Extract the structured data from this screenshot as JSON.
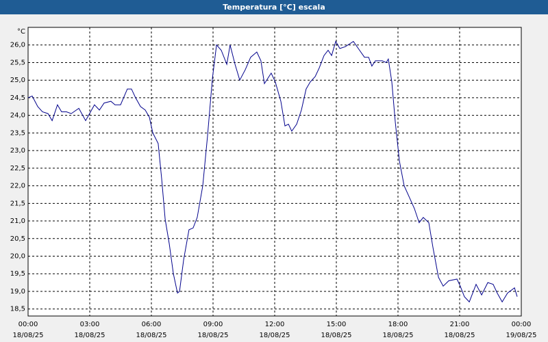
{
  "chart_data": {
    "type": "line",
    "title": "Temperatura [°C] escala",
    "unit": "°C",
    "x": [
      0,
      0.2,
      0.47,
      0.7,
      0.97,
      1.17,
      1.43,
      1.63,
      1.87,
      2.1,
      2.47,
      2.8,
      3.23,
      3.47,
      3.7,
      4.03,
      4.23,
      4.5,
      4.83,
      5.03,
      5.23,
      5.47,
      5.7,
      5.9,
      6.07,
      6.33,
      6.5,
      6.67,
      6.87,
      7.07,
      7.27,
      7.37,
      7.57,
      7.83,
      8.03,
      8.23,
      8.5,
      8.73,
      8.97,
      9.17,
      9.4,
      9.67,
      9.83,
      10.07,
      10.3,
      10.57,
      10.83,
      11.13,
      11.33,
      11.5,
      11.83,
      12.03,
      12.3,
      12.5,
      12.67,
      12.83,
      13.07,
      13.3,
      13.53,
      13.73,
      13.97,
      14.17,
      14.4,
      14.6,
      14.77,
      14.97,
      15.17,
      15.43,
      15.83,
      16.13,
      16.37,
      16.57,
      16.73,
      16.9,
      17.23,
      17.43,
      17.53,
      17.7,
      17.87,
      18.07,
      18.3,
      18.57,
      18.8,
      19.03,
      19.23,
      19.5,
      19.7,
      19.97,
      20.2,
      20.47,
      20.87,
      21.03,
      21.23,
      21.47,
      21.8,
      22.07,
      22.37,
      22.63,
      22.83,
      23.07,
      23.33,
      23.67,
      23.8
    ],
    "series": [
      {
        "name": "Temperatura",
        "color": "#00008b",
        "values": [
          24.5,
          24.55,
          24.25,
          24.1,
          24.05,
          23.85,
          24.3,
          24.1,
          24.1,
          24.05,
          24.2,
          23.85,
          24.3,
          24.15,
          24.35,
          24.4,
          24.3,
          24.3,
          24.75,
          24.75,
          24.5,
          24.25,
          24.15,
          23.95,
          23.5,
          23.2,
          22.2,
          21.05,
          20.35,
          19.5,
          18.95,
          19.0,
          19.9,
          20.75,
          20.8,
          21.1,
          22.0,
          23.4,
          25.05,
          26.0,
          25.85,
          25.45,
          26.0,
          25.45,
          25.0,
          25.3,
          25.65,
          25.8,
          25.55,
          24.9,
          25.2,
          24.95,
          24.4,
          23.7,
          23.75,
          23.55,
          23.75,
          24.15,
          24.75,
          24.95,
          25.1,
          25.35,
          25.7,
          25.85,
          25.7,
          26.1,
          25.9,
          25.95,
          26.1,
          25.85,
          25.65,
          25.65,
          25.4,
          25.55,
          25.55,
          25.5,
          25.6,
          24.95,
          23.8,
          22.7,
          22.0,
          21.65,
          21.35,
          20.95,
          21.1,
          20.95,
          20.25,
          19.4,
          19.15,
          19.3,
          19.35,
          19.15,
          18.85,
          18.7,
          19.2,
          18.9,
          19.25,
          19.2,
          18.95,
          18.7,
          18.95,
          19.1,
          18.85
        ]
      }
    ],
    "xlim": [
      0,
      24
    ],
    "xticks": [
      {
        "value": 0,
        "label": "00:00"
      },
      {
        "value": 3,
        "label": "03:00"
      },
      {
        "value": 6,
        "label": "06:00"
      },
      {
        "value": 9,
        "label": "09:00"
      },
      {
        "value": 12,
        "label": "12:00"
      },
      {
        "value": 15,
        "label": "15:00"
      },
      {
        "value": 18,
        "label": "18:00"
      },
      {
        "value": 21,
        "label": "21:00"
      },
      {
        "value": 24,
        "label": "00:00"
      }
    ],
    "xtick_dates": [
      "18/08/25",
      "18/08/25",
      "18/08/25",
      "18/08/25",
      "18/08/25",
      "18/08/25",
      "18/08/25",
      "18/08/25",
      "19/08/25"
    ],
    "ylim": [
      18.3,
      26.5
    ],
    "yticks": [
      {
        "value": 18.5,
        "label": "18,5"
      },
      {
        "value": 19,
        "label": "19,0"
      },
      {
        "value": 19.5,
        "label": "19,5"
      },
      {
        "value": 20,
        "label": "20,0"
      },
      {
        "value": 20.5,
        "label": "20,5"
      },
      {
        "value": 21,
        "label": "21,0"
      },
      {
        "value": 21.5,
        "label": "21,5"
      },
      {
        "value": 22,
        "label": "22,0"
      },
      {
        "value": 22.5,
        "label": "22,5"
      },
      {
        "value": 23,
        "label": "23,0"
      },
      {
        "value": 23.5,
        "label": "23,5"
      },
      {
        "value": 24,
        "label": "24,0"
      },
      {
        "value": 24.5,
        "label": "24,5"
      },
      {
        "value": 25,
        "label": "25,0"
      },
      {
        "value": 25.5,
        "label": "25,5"
      },
      {
        "value": 26,
        "label": "26,0"
      }
    ],
    "grid": true
  }
}
